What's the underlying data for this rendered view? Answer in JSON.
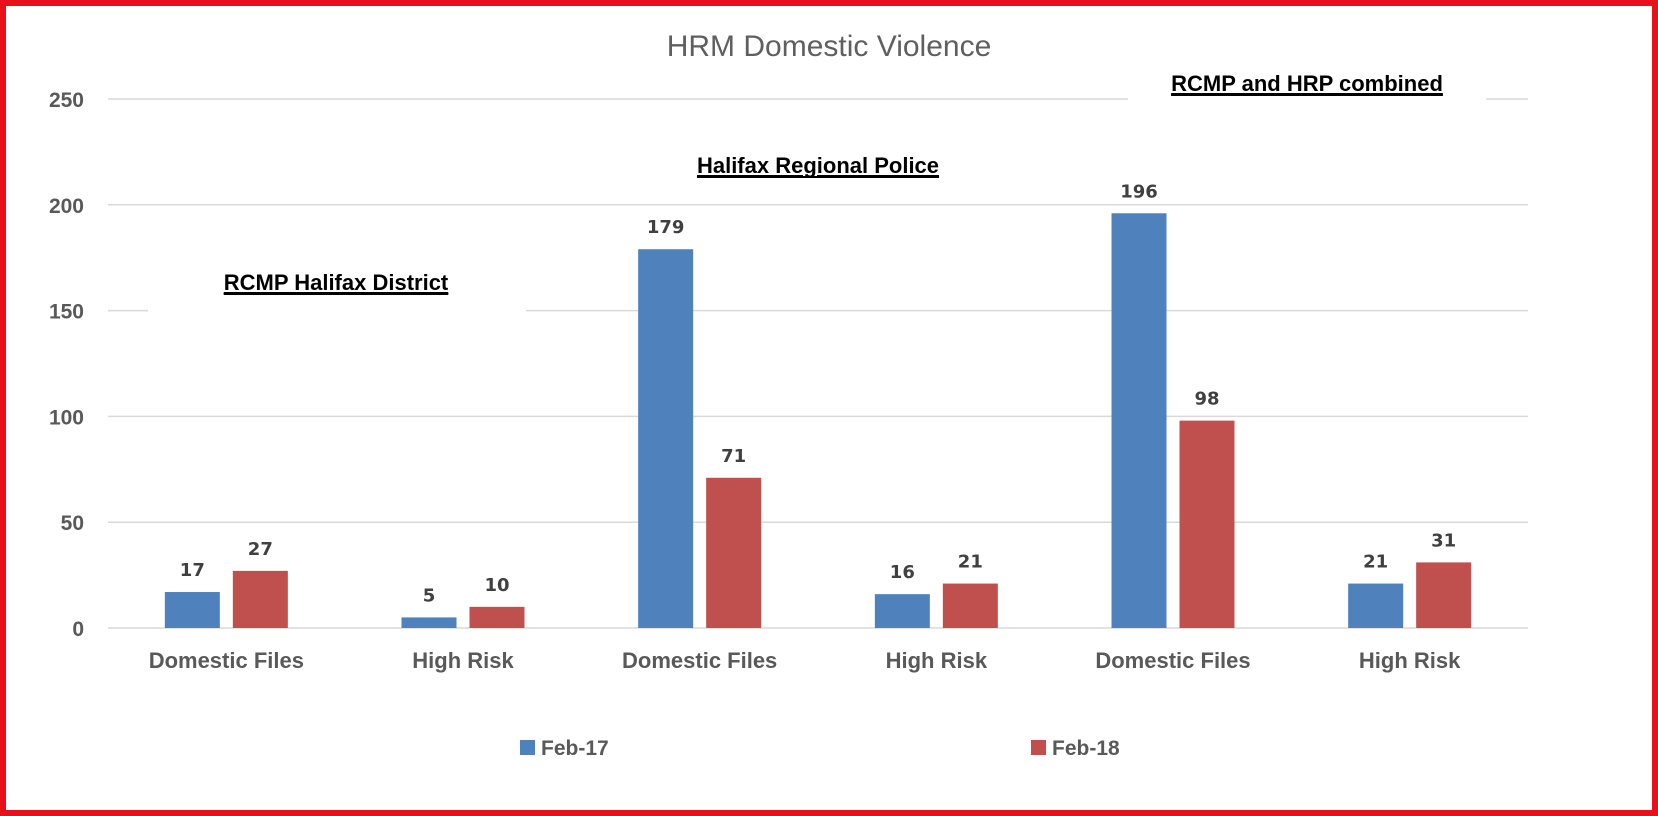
{
  "chart_data": {
    "type": "bar",
    "title": "HRM Domestic Violence",
    "categories": [
      "Domestic Files",
      "High Risk",
      "Domestic Files",
      "High Risk",
      "Domestic Files",
      "High Risk"
    ],
    "series": [
      {
        "name": "Feb-17",
        "values": [
          17,
          5,
          179,
          16,
          196,
          21
        ],
        "color": "#4f81bd"
      },
      {
        "name": "Feb-18",
        "values": [
          27,
          10,
          71,
          21,
          98,
          31
        ],
        "color": "#c0504d"
      }
    ],
    "ylim": [
      0,
      250
    ],
    "yticks": [
      0,
      50,
      100,
      150,
      200,
      250
    ],
    "grid": true,
    "legend_position": "bottom",
    "annotations": [
      {
        "text": "RCMP Halifax District"
      },
      {
        "text": "Halifax Regional Police"
      },
      {
        "text": "RCMP and HRP combined"
      }
    ]
  },
  "colors": {
    "frame_border": "#e8101a"
  }
}
